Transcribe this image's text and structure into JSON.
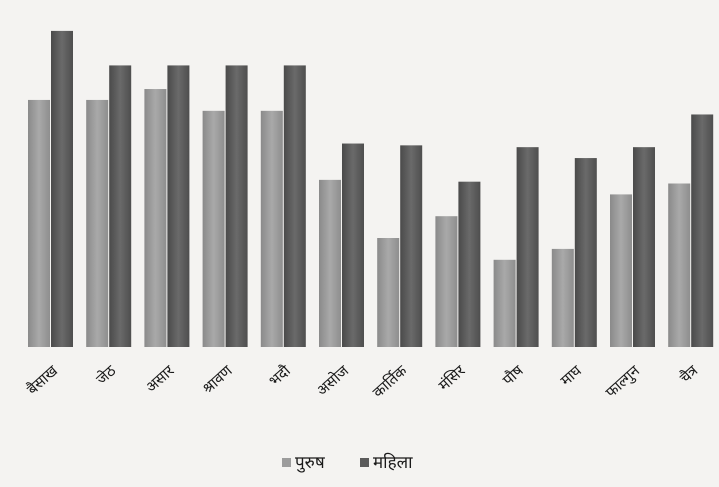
{
  "chart_data": {
    "type": "bar",
    "title": "",
    "xlabel": "",
    "ylabel": "",
    "categories": [
      "बैसाख",
      "जेठ",
      "असार",
      "श्रावण",
      "भदौ",
      "असोज",
      "कार्तिक",
      "मंसिर",
      "पौष",
      "माघ",
      "फाल्गुन",
      "चैत्र"
    ],
    "series": [
      {
        "name": "पुरुष",
        "color": "#9c9c9c",
        "values": [
          6.8,
          6.8,
          7.1,
          6.5,
          6.5,
          4.6,
          3.0,
          3.6,
          2.4,
          2.7,
          4.2,
          4.5
        ]
      },
      {
        "name": "महिला",
        "color": "#5b5b5b",
        "values": [
          8.7,
          7.75,
          7.75,
          7.75,
          7.75,
          5.6,
          5.55,
          4.55,
          5.5,
          5.2,
          5.5,
          6.4
        ]
      }
    ],
    "ylim": [
      0,
      9
    ],
    "grid": false,
    "legend_position": "bottom"
  }
}
